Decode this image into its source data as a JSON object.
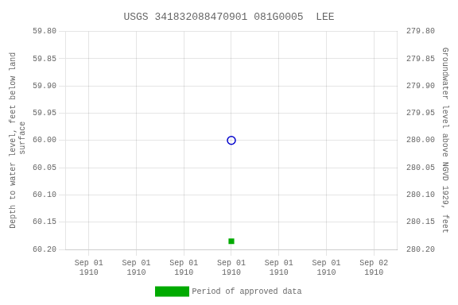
{
  "chart_data": {
    "type": "scatter",
    "title": "USGS 341832088470901 081G0005  LEE",
    "categories": [
      "Sep 01\n1910",
      "Sep 01\n1910",
      "Sep 01\n1910",
      "Sep 01\n1910",
      "Sep 01\n1910",
      "Sep 01\n1910",
      "Sep 02\n1910"
    ],
    "y_label": "Depth to water level, feet below land\n surface",
    "y2_label": "Groundwater level above NGVD 1929, feet",
    "ylim": [
      60.2,
      59.8
    ],
    "yticks": [
      {
        "value": 59.8,
        "label": "59.80"
      },
      {
        "value": 59.85,
        "label": "59.85"
      },
      {
        "value": 59.9,
        "label": "59.90"
      },
      {
        "value": 59.95,
        "label": "59.95"
      },
      {
        "value": 60.0,
        "label": "60.00"
      },
      {
        "value": 60.05,
        "label": "60.05"
      },
      {
        "value": 60.1,
        "label": "60.10"
      },
      {
        "value": 60.15,
        "label": "60.15"
      },
      {
        "value": 60.2,
        "label": "60.20"
      }
    ],
    "y2lim": [
      280.2,
      279.8
    ],
    "y2ticks": [
      {
        "value": 280.2,
        "label": "280.20"
      },
      {
        "value": 280.15,
        "label": "280.15"
      },
      {
        "value": 280.1,
        "label": "280.10"
      },
      {
        "value": 280.05,
        "label": "280.05"
      },
      {
        "value": 280.0,
        "label": "280.00"
      },
      {
        "value": 279.95,
        "label": "279.95"
      },
      {
        "value": 279.9,
        "label": "279.90"
      },
      {
        "value": 279.85,
        "label": "279.85"
      },
      {
        "value": 279.8,
        "label": "279.80"
      }
    ],
    "series": [
      {
        "color": "#0000cc",
        "marker": "circle_open",
        "values": [
          null,
          null,
          null,
          60.0,
          null,
          null,
          null
        ]
      },
      {
        "name": "Period of approved data",
        "color": "#00aa00",
        "marker": "square",
        "values": [
          null,
          null,
          null,
          60.185,
          null,
          null,
          null
        ]
      }
    ],
    "grid": true,
    "legend": "bottom"
  }
}
